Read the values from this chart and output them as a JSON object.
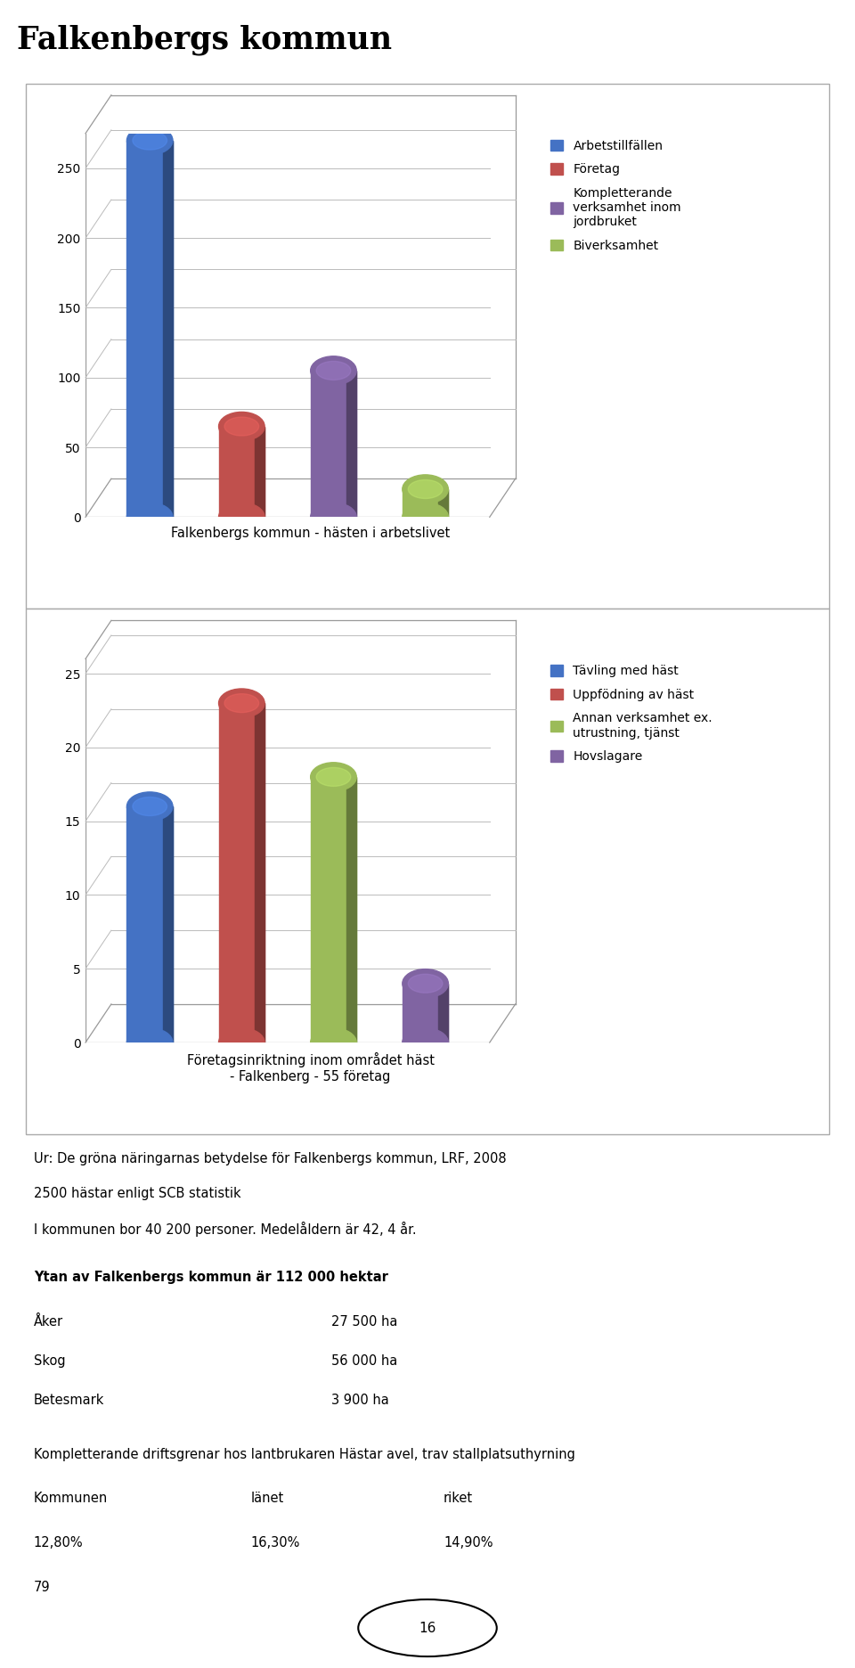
{
  "title": "Falkenbergs kommun",
  "chart1": {
    "values": [
      270,
      65,
      105,
      20
    ],
    "colors": [
      "#4472C4",
      "#C0504D",
      "#8064A2",
      "#9BBB59"
    ],
    "legend_labels": [
      "Arbetstillfällen",
      "Företag",
      "Kompletterande\nverksamhet inom\njordbruket",
      "Biverksamhet"
    ],
    "xlabel": "Falkenbergs kommun - hästen i arbetslivet",
    "yticks": [
      0,
      50,
      100,
      150,
      200,
      250
    ],
    "ylim": [
      0,
      275
    ]
  },
  "chart2": {
    "values": [
      16,
      23,
      18,
      4
    ],
    "colors": [
      "#4472C4",
      "#C0504D",
      "#9BBB59",
      "#8064A2"
    ],
    "legend_labels": [
      "Tävling med häst",
      "Uppfödning av häst",
      "Annan verksamhet ex.\nutrustning, tjänst",
      "Hovslagare"
    ],
    "xlabel": "Företagsinriktning inom området häst\n- Falkenberg - 55 företag",
    "yticks": [
      0,
      5,
      10,
      15,
      20,
      25
    ],
    "ylim": [
      0,
      26
    ]
  },
  "text_lines": [
    "Ur: De gröna näringarnas betydelse för Falkenbergs kommun, LRF, 2008",
    "2500 hästar enligt SCB statistik",
    "I kommunen bor 40 200 personer. Medelåldern är 42, 4 år.",
    "Ytan av Falkenbergs kommun är 112 000 hektar",
    "Åker",
    "27 500 ha",
    "Skog",
    "56 000 ha",
    "Betesmark",
    "3 900 ha",
    "Kompletterande driftsgrenar hos lantbrukaren Hästar avel, trav stallplatsuthyrning",
    "Kommunen",
    "länet",
    "riket",
    "12,80%",
    "16,30%",
    "14,90%",
    "79"
  ],
  "page_number": "16",
  "bg_color": "#FFFFFF"
}
